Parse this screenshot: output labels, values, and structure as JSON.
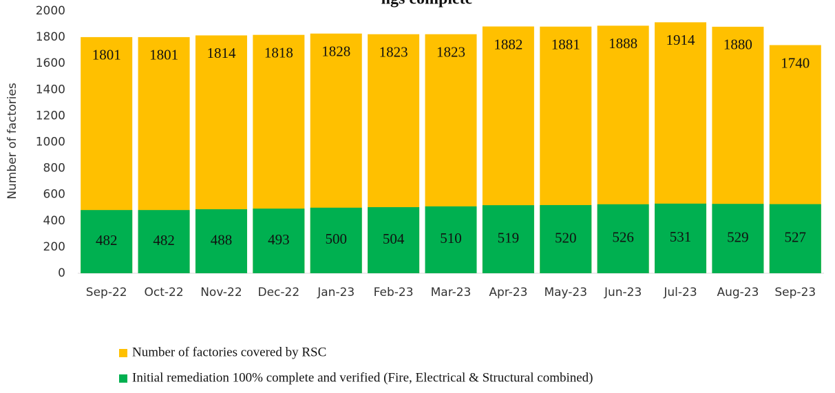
{
  "chart_data": {
    "type": "bar",
    "title": "ngs complete",
    "y_label": "Number of factories",
    "categories": [
      "Sep-22",
      "Oct-22",
      "Nov-22",
      "Dec-22",
      "Jan-23",
      "Feb-23",
      "Mar-23",
      "Apr-23",
      "May-23",
      "Jun-23",
      "Jul-23",
      "Aug-23",
      "Sep-23"
    ],
    "series": [
      {
        "name": "Number of factories covered by RSC",
        "color": "#ffc000",
        "values": [
          1801,
          1801,
          1814,
          1818,
          1828,
          1823,
          1823,
          1882,
          1881,
          1888,
          1914,
          1880,
          1740
        ]
      },
      {
        "name": "Initial remediation 100% complete and verified (Fire, Electrical & Structural combined)",
        "color": "#00b050",
        "values": [
          482,
          482,
          488,
          493,
          500,
          504,
          510,
          519,
          520,
          526,
          531,
          529,
          527
        ]
      }
    ],
    "ylim": [
      0,
      2000
    ],
    "yticks": [
      0,
      200,
      400,
      600,
      800,
      1000,
      1200,
      1400,
      1600,
      1800,
      2000
    ]
  }
}
